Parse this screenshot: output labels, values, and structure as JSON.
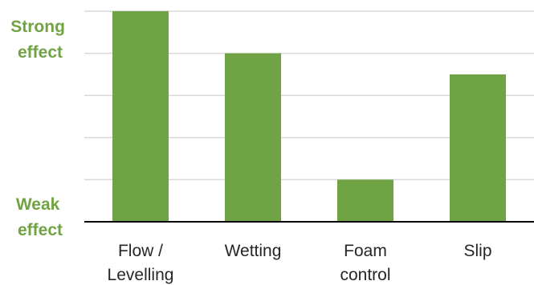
{
  "colors": {
    "bar": "#70a343",
    "label": "#70a343",
    "grid": "#d9d9d9",
    "axis": "#000000",
    "text": "#262626"
  },
  "y_axis_labels": {
    "top": [
      "Strong",
      "effect"
    ],
    "bottom": [
      "Weak",
      "effect"
    ]
  },
  "chart_data": {
    "type": "bar",
    "categories": [
      [
        "Flow /",
        "Levelling"
      ],
      [
        "Wetting"
      ],
      [
        "Foam",
        "control"
      ],
      [
        "Slip"
      ]
    ],
    "values": [
      5,
      4,
      1,
      3.5
    ],
    "ylim": [
      0,
      5
    ],
    "grid": true,
    "legend": "none"
  }
}
